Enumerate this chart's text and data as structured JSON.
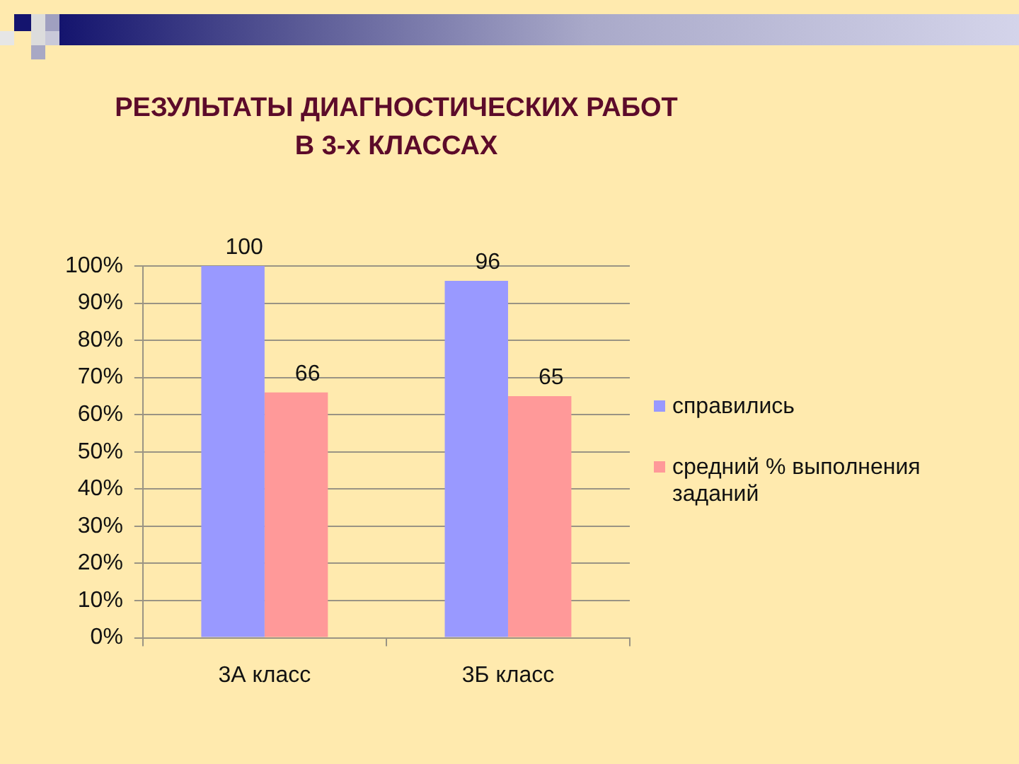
{
  "chart_data": {
    "type": "bar",
    "title": "РЕЗУЛЬТАТЫ ДИАГНОСТИЧЕСКИХ РАБОТ\nВ 3-х КЛАССАХ",
    "categories": [
      "3А класс",
      "3Б класс"
    ],
    "series": [
      {
        "name": "справились",
        "color": "#9999ff",
        "values": [
          100,
          96
        ]
      },
      {
        "name": "средний % выполнения заданий",
        "color": "#ff9999",
        "values": [
          66,
          65
        ]
      }
    ],
    "ylim": [
      0,
      100
    ],
    "yticks": [
      {
        "value": 0,
        "label": "0%"
      },
      {
        "value": 10,
        "label": "10%"
      },
      {
        "value": 20,
        "label": "20%"
      },
      {
        "value": 30,
        "label": "30%"
      },
      {
        "value": 40,
        "label": "40%"
      },
      {
        "value": 50,
        "label": "50%"
      },
      {
        "value": 60,
        "label": "60%"
      },
      {
        "value": 70,
        "label": "70%"
      },
      {
        "value": 80,
        "label": "80%"
      },
      {
        "value": 90,
        "label": "90%"
      },
      {
        "value": 100,
        "label": "100%"
      }
    ],
    "grid": "y",
    "legend": "right",
    "data_labels": true
  }
}
